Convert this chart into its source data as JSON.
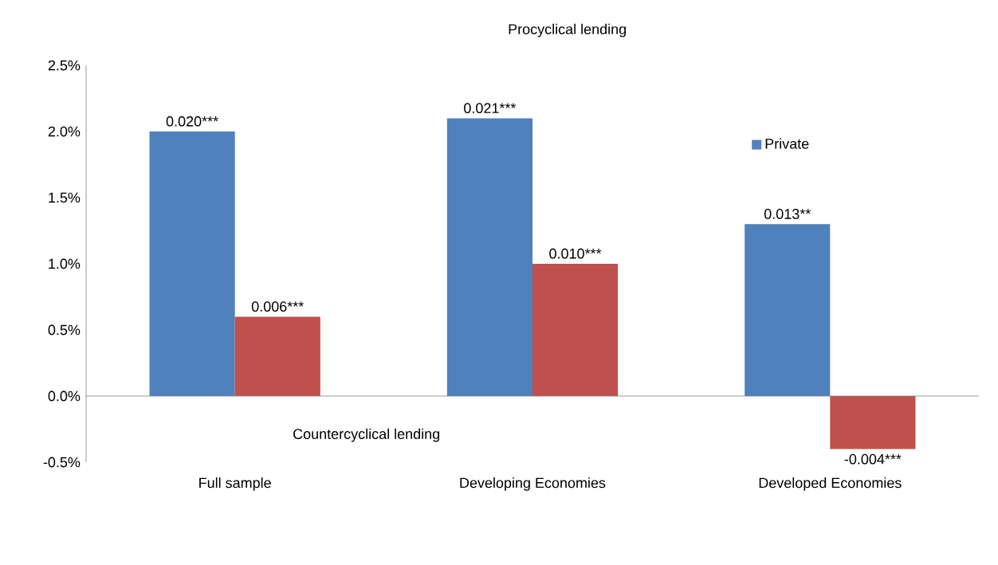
{
  "chart_data": {
    "type": "bar",
    "categories": [
      "Full sample",
      "Developing Economies",
      "Developed Economies"
    ],
    "series": [
      {
        "name": "Private",
        "color": "#4f81bd",
        "values": [
          0.02,
          0.021,
          0.013
        ],
        "value_labels": [
          "0.020***",
          "0.021***",
          "0.013**"
        ]
      },
      {
        "color": "#c0504d",
        "values": [
          0.006,
          0.01,
          -0.004
        ],
        "value_labels": [
          "0.006***",
          "0.010***",
          "-0.004***"
        ]
      }
    ],
    "ylim": [
      -0.005,
      0.025
    ],
    "yticks": [
      {
        "value": -0.005,
        "label": "-0.5%"
      },
      {
        "value": 0,
        "label": "0.0%"
      },
      {
        "value": 0.005,
        "label": "0.5%"
      },
      {
        "value": 0.01,
        "label": "1.0%"
      },
      {
        "value": 0.015,
        "label": "1.5%"
      },
      {
        "value": 0.02,
        "label": "2.0%"
      },
      {
        "value": 0.025,
        "label": "2.5%"
      }
    ],
    "annotations": [
      "Procyclical lending",
      "Countercyclical lending"
    ],
    "legend": "right"
  }
}
